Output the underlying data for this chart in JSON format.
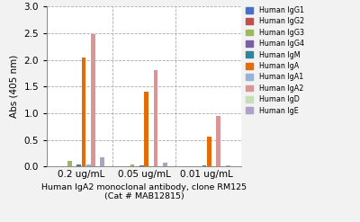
{
  "xlabel": "Human IgA2 monoclonal antibody, clone RM125\n(Cat # MAB12815)",
  "ylabel": "Abs (405 nm)",
  "groups": [
    "0.2 ug/mL",
    "0.05 ug/mL",
    "0.01 ug/mL"
  ],
  "series": [
    {
      "label": "Human IgG1",
      "color": "#4472C4",
      "values": [
        0.01,
        0.005,
        0.005
      ]
    },
    {
      "label": "Human IgG2",
      "color": "#C0504D",
      "values": [
        0.01,
        0.005,
        0.005
      ]
    },
    {
      "label": "Human IgG3",
      "color": "#9BBB59",
      "values": [
        0.1,
        0.03,
        0.012
      ]
    },
    {
      "label": "Human IgG4",
      "color": "#7B5EA7",
      "values": [
        0.01,
        0.005,
        0.005
      ]
    },
    {
      "label": "Human IgM",
      "color": "#31849B",
      "values": [
        0.04,
        0.02,
        0.015
      ]
    },
    {
      "label": "Human IgA",
      "color": "#E36C09",
      "values": [
        2.04,
        1.41,
        0.56
      ]
    },
    {
      "label": "Human IgA1",
      "color": "#95B3D7",
      "values": [
        0.04,
        0.005,
        0.005
      ]
    },
    {
      "label": "Human IgA2",
      "color": "#D99694",
      "values": [
        2.48,
        1.81,
        0.95
      ]
    },
    {
      "label": "Human IgD",
      "color": "#C6E0B4",
      "values": [
        0.005,
        0.005,
        0.005
      ]
    },
    {
      "label": "Human IgE",
      "color": "#B1A0C7",
      "values": [
        0.18,
        0.08,
        0.02
      ]
    }
  ],
  "ylim": [
    0,
    3.0
  ],
  "yticks": [
    0,
    0.5,
    1.0,
    1.5,
    2.0,
    2.5,
    3.0
  ],
  "bg_color": "#F2F2F2",
  "plot_bg": "#FFFFFF",
  "grid_color": "#AAAAAA",
  "separator_color": "#AAAAAA"
}
